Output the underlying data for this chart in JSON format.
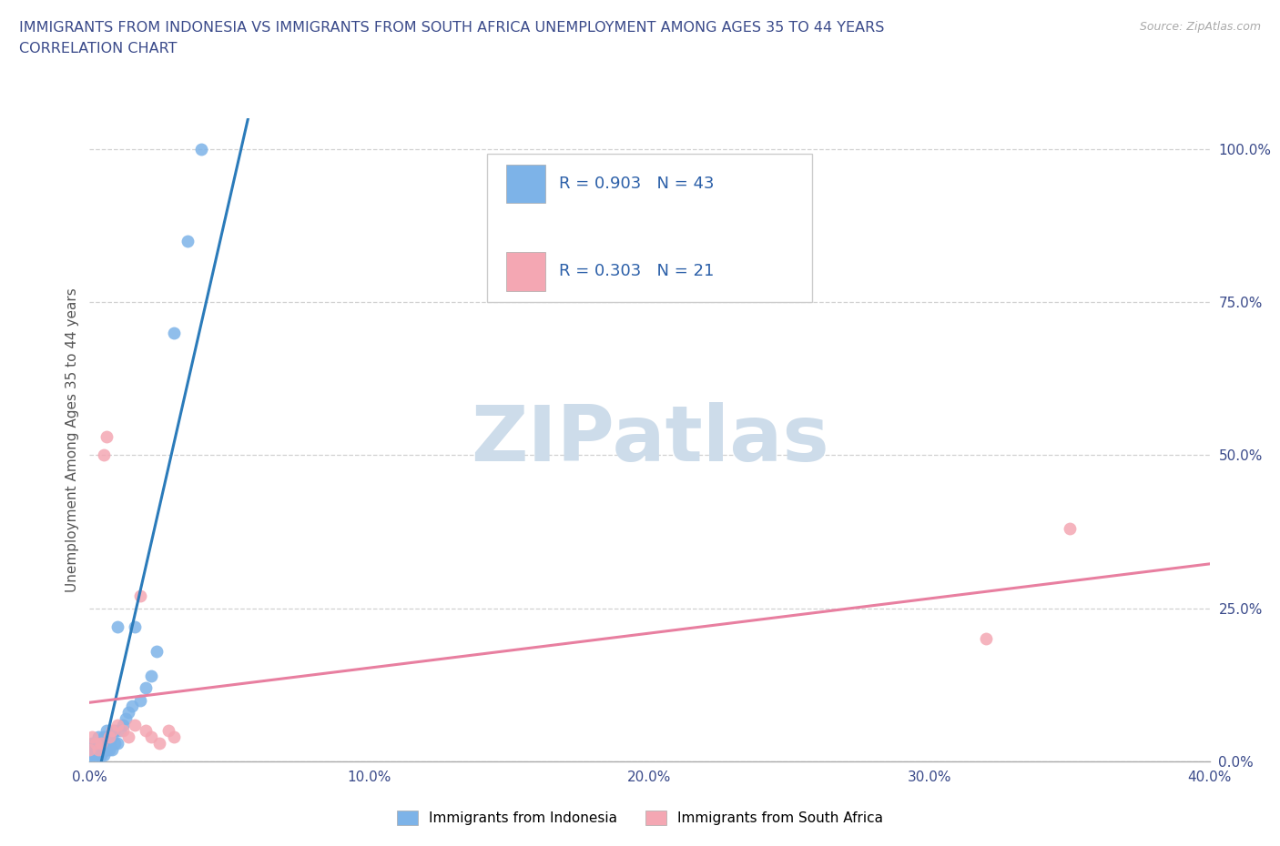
{
  "title_line1": "IMMIGRANTS FROM INDONESIA VS IMMIGRANTS FROM SOUTH AFRICA UNEMPLOYMENT AMONG AGES 35 TO 44 YEARS",
  "title_line2": "CORRELATION CHART",
  "source_text": "Source: ZipAtlas.com",
  "ylabel": "Unemployment Among Ages 35 to 44 years",
  "xlim": [
    0.0,
    0.4
  ],
  "ylim": [
    0.0,
    1.05
  ],
  "xtick_labels": [
    "0.0%",
    "10.0%",
    "20.0%",
    "30.0%",
    "40.0%"
  ],
  "xtick_vals": [
    0.0,
    0.1,
    0.2,
    0.3,
    0.4
  ],
  "ytick_labels": [
    "100.0%",
    "75.0%",
    "50.0%",
    "25.0%",
    "0.0%"
  ],
  "ytick_vals": [
    1.0,
    0.75,
    0.5,
    0.25,
    0.0
  ],
  "indonesia_color": "#7db3e8",
  "south_africa_color": "#f4a7b3",
  "indonesia_line_color": "#2b7bba",
  "south_africa_line_color": "#e87fa0",
  "R_indonesia": 0.903,
  "N_indonesia": 43,
  "R_south_africa": 0.303,
  "N_south_africa": 21,
  "watermark": "ZIPatlas",
  "watermark_color": "#cddcea",
  "indonesia_scatter_x": [
    0.0,
    0.0,
    0.001,
    0.001,
    0.001,
    0.002,
    0.002,
    0.002,
    0.003,
    0.003,
    0.003,
    0.003,
    0.004,
    0.004,
    0.004,
    0.005,
    0.005,
    0.005,
    0.006,
    0.006,
    0.006,
    0.007,
    0.007,
    0.007,
    0.008,
    0.008,
    0.009,
    0.009,
    0.01,
    0.01,
    0.011,
    0.012,
    0.013,
    0.014,
    0.015,
    0.016,
    0.018,
    0.02,
    0.022,
    0.024,
    0.03,
    0.035,
    0.04
  ],
  "indonesia_scatter_y": [
    0.01,
    0.02,
    0.01,
    0.02,
    0.03,
    0.01,
    0.02,
    0.03,
    0.01,
    0.02,
    0.03,
    0.04,
    0.01,
    0.02,
    0.03,
    0.01,
    0.02,
    0.04,
    0.02,
    0.03,
    0.05,
    0.02,
    0.03,
    0.04,
    0.02,
    0.04,
    0.03,
    0.05,
    0.03,
    0.22,
    0.05,
    0.06,
    0.07,
    0.08,
    0.09,
    0.22,
    0.1,
    0.12,
    0.14,
    0.18,
    0.7,
    0.85,
    1.0
  ],
  "south_africa_scatter_x": [
    0.0,
    0.001,
    0.002,
    0.003,
    0.004,
    0.005,
    0.006,
    0.007,
    0.008,
    0.01,
    0.012,
    0.014,
    0.016,
    0.018,
    0.02,
    0.022,
    0.025,
    0.028,
    0.03,
    0.32,
    0.35
  ],
  "south_africa_scatter_y": [
    0.02,
    0.04,
    0.03,
    0.02,
    0.03,
    0.5,
    0.53,
    0.04,
    0.05,
    0.06,
    0.05,
    0.04,
    0.06,
    0.27,
    0.05,
    0.04,
    0.03,
    0.05,
    0.04,
    0.2,
    0.38
  ],
  "legend_indonesia_label": "Immigrants from Indonesia",
  "legend_south_africa_label": "Immigrants from South Africa"
}
